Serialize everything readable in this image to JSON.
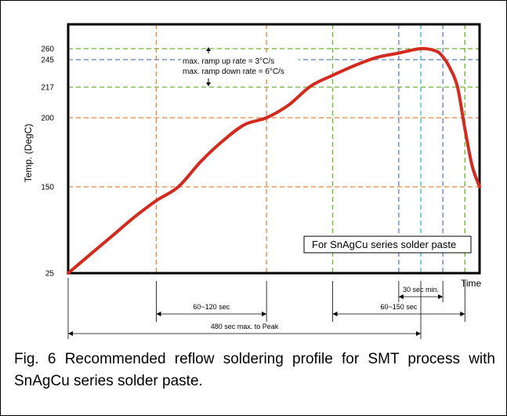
{
  "caption": "Fig. 6 Recommended reflow soldering profile for SMT process with SnAgCu series solder paste.",
  "chart_data": {
    "type": "line",
    "title": "",
    "ylabel": "Temp. (DegC)",
    "xlabel": "Time",
    "y_ticks": [
      25,
      150,
      200,
      217,
      245,
      260
    ],
    "ylim": [
      25,
      275
    ],
    "x_axis_unit": "sec",
    "series": [
      {
        "color": "#d42a1e",
        "x": [
          0,
          30,
          60,
          90,
          120,
          150,
          180,
          210,
          240,
          270,
          300,
          330,
          360,
          390,
          420,
          450,
          480,
          500,
          510,
          520,
          530,
          540,
          550,
          560
        ],
        "y": [
          25,
          52,
          79,
          106,
          130,
          150,
          168,
          183,
          195,
          200,
          207,
          218,
          229,
          239,
          248,
          254,
          260,
          257,
          249,
          236,
          217,
          192,
          165,
          150
        ]
      }
    ],
    "reference_lines": {
      "horizontal": [
        {
          "y": 260,
          "color": "#6ab42e"
        },
        {
          "y": 245,
          "color": "#5b7fc0"
        },
        {
          "y": 217,
          "color": "#6ab42e"
        },
        {
          "y": 200,
          "color": "#e8833a"
        },
        {
          "y": 150,
          "color": "#e8833a"
        }
      ],
      "vertical": [
        {
          "x": 120,
          "color": "#e8833a"
        },
        {
          "x": 270,
          "color": "#e8833a"
        },
        {
          "x": 360,
          "color": "#6ab42e"
        },
        {
          "x": 450,
          "color": "#5b7fc0"
        },
        {
          "x": 480,
          "color": "#3fb2cc"
        },
        {
          "x": 510,
          "color": "#5b7fc0"
        },
        {
          "x": 540,
          "color": "#6ab42e"
        }
      ]
    },
    "annotations": {
      "ramp_up": "max. ramp up rate = 3°C/s",
      "ramp_down": "max. ramp down rate = 6°C/s",
      "box_label": "For SnAgCu series solder paste",
      "dim_30": "30 sec min.",
      "dim_60_120": "60~120 sec",
      "dim_60_150": "60~150 sec",
      "dim_480": "480 sec max. to Peak"
    },
    "grid": false,
    "legend": "none"
  }
}
